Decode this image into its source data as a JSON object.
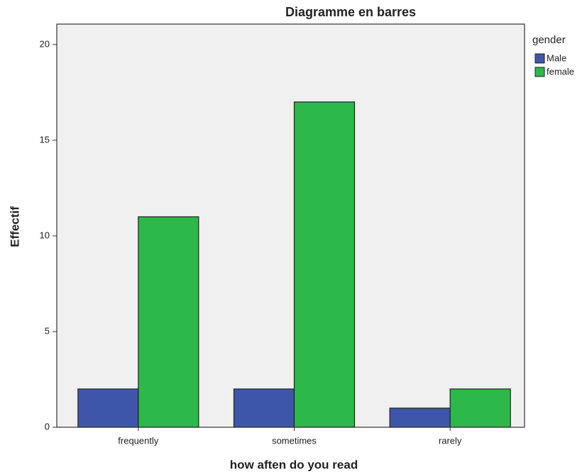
{
  "chart_data": {
    "type": "bar",
    "title": "Diagramme en barres",
    "x_label": "how aften do you read",
    "y_label": "Effectif",
    "legend_title": "gender",
    "legend_position": "right",
    "categories": [
      "frequently",
      "sometimes",
      "rarely"
    ],
    "series": [
      {
        "name": "Male",
        "color": "#3e56aa",
        "values": [
          2,
          2,
          1
        ]
      },
      {
        "name": "female",
        "color": "#2db84a",
        "values": [
          11,
          17,
          2
        ]
      }
    ],
    "ylim": [
      0,
      21.07
    ],
    "yticks": [
      0,
      5,
      10,
      15,
      20
    ],
    "grid": false
  }
}
